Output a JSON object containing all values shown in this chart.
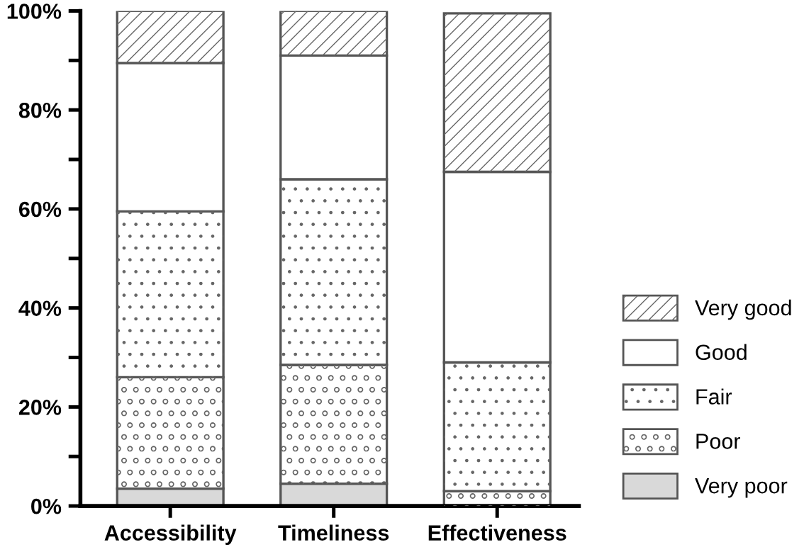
{
  "chart_data": {
    "type": "bar",
    "stacked": true,
    "categories": [
      "Accessibility",
      "Timeliness",
      "Effectiveness"
    ],
    "series": [
      {
        "name": "Very poor",
        "color": "#d9d9d9",
        "values": [
          3.5,
          4.5,
          null
        ]
      },
      {
        "name": "Poor",
        "color": "#ffffff",
        "values": [
          22.5,
          24,
          3
        ]
      },
      {
        "name": "Fair",
        "color": "#ffffff",
        "values": [
          33.5,
          37.5,
          26
        ]
      },
      {
        "name": "Good",
        "color": "#ffffff",
        "values": [
          30,
          25,
          38.5
        ]
      },
      {
        "name": "Very good",
        "color": "#ffffff",
        "values": [
          10.5,
          9,
          32
        ]
      }
    ],
    "ylim": [
      0,
      100
    ],
    "yticks": [
      {
        "value": 0,
        "label": "0%"
      },
      {
        "value": 10,
        "label": null
      },
      {
        "value": 20,
        "label": "20%"
      },
      {
        "value": 30,
        "label": null
      },
      {
        "value": 40,
        "label": "40%"
      },
      {
        "value": 50,
        "label": null
      },
      {
        "value": 60,
        "label": "60%"
      },
      {
        "value": 70,
        "label": null
      },
      {
        "value": 80,
        "label": "80%"
      },
      {
        "value": 90,
        "label": null
      },
      {
        "value": 100,
        "label": "100%"
      }
    ],
    "legend": "right",
    "grid": false
  }
}
